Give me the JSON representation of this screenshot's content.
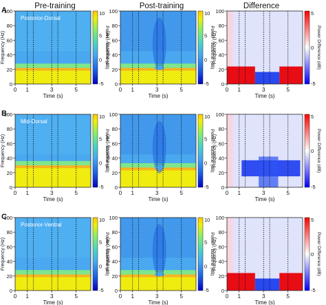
{
  "column_titles": [
    "Pre-training",
    "Post-training",
    "Difference"
  ],
  "rows": [
    {
      "panel_letter": "A",
      "region_label": "Posterior-Dorsal"
    },
    {
      "panel_letter": "B",
      "region_label": "Mid-Dorsal"
    },
    {
      "panel_letter": "C",
      "region_label": "Posterior-Ventral"
    }
  ],
  "axes": {
    "xlabel": "Time (s)",
    "ylabel": "Frequency (Hz)",
    "x_ticks": [
      0,
      1,
      3,
      5
    ],
    "y_ticks": [
      0,
      20,
      40,
      60,
      80,
      100
    ],
    "xlim": [
      0,
      6.2
    ],
    "ylim": [
      0,
      100
    ]
  },
  "colorbars": {
    "power": {
      "label": "Power - Baseline (dB)",
      "ticks": [
        10,
        5,
        0,
        -5
      ],
      "range": [
        -5,
        10
      ]
    },
    "difference": {
      "label": "Power Difference (dB)",
      "ticks": [
        5,
        0,
        -5
      ],
      "range": [
        -5,
        5
      ]
    }
  },
  "event_lines_s": [
    1,
    1.5,
    3,
    3.5,
    5
  ],
  "colors": {
    "power_scale": [
      "#0000c8",
      "#1e64e6",
      "#46aaf0",
      "#46d2c8",
      "#8cf064",
      "#f0f000",
      "#fac800"
    ],
    "difference_scale": [
      "#0000ff",
      "#ffffff",
      "#ff0000"
    ]
  },
  "chart_data": {
    "type": "heatmap",
    "description_unit": "time-frequency power, dB relative to baseline",
    "panels": [
      {
        "row": "A",
        "column": "Pre-training",
        "low_band_hz": 20,
        "low_band_db": 9,
        "high_freq_db": 0
      },
      {
        "row": "A",
        "column": "Post-training",
        "low_band_hz": 20,
        "low_band_db": 9,
        "high_freq_db": -1,
        "dip_at_s": 3.2
      },
      {
        "row": "A",
        "column": "Difference",
        "low_band_hz": 20,
        "low_band_diff_db": 5,
        "gap_s": [
          2.3,
          4.3
        ],
        "high_freq_diff_db": -1
      },
      {
        "row": "B",
        "column": "Pre-training",
        "low_band_hz": 28,
        "low_band_db": 9,
        "high_freq_db": 1
      },
      {
        "row": "B",
        "column": "Post-training",
        "low_band_hz": 25,
        "low_band_db": 9,
        "high_freq_db": -0.5,
        "dip_at_s": 3.2
      },
      {
        "row": "B",
        "column": "Difference",
        "low_band_hz": 25,
        "low_band_diff_db": -4,
        "high_freq_diff_db": -1
      },
      {
        "row": "C",
        "column": "Pre-training",
        "low_band_hz": 20,
        "low_band_db": 9,
        "high_freq_db": 0
      },
      {
        "row": "C",
        "column": "Post-training",
        "low_band_hz": 20,
        "low_band_db": 9,
        "high_freq_db": -1,
        "dip_at_s": 3.2
      },
      {
        "row": "C",
        "column": "Difference",
        "low_band_hz": 20,
        "low_band_diff_db": 5,
        "gap_s": [
          2.3,
          4.3
        ],
        "high_freq_diff_db": -1
      }
    ]
  }
}
